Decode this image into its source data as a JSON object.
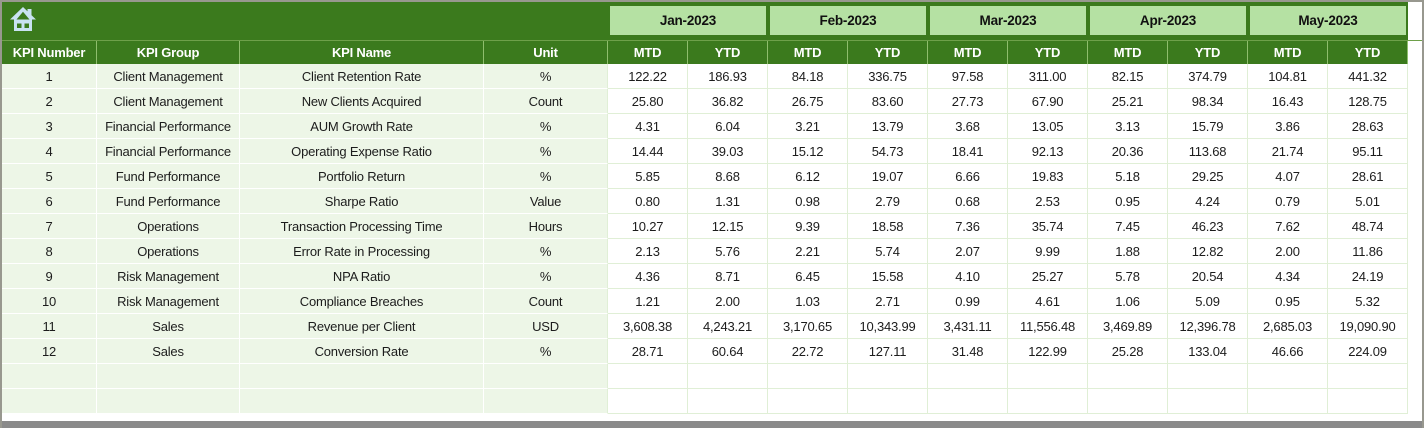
{
  "app": {
    "type": "spreadsheet-kpi-dashboard",
    "home_button": "home"
  },
  "colors": {
    "dark_green": "#3b7a1d",
    "light_green": "#b5e1a3",
    "left_cell_fill": "#edf6e7",
    "scrollbar_gray": "#8a8a8a",
    "home_icon_blue": "#c9e2f2"
  },
  "table": {
    "left_headers": [
      "KPI Number",
      "KPI Group",
      "KPI Name",
      "Unit"
    ],
    "months": [
      "Jan-2023",
      "Feb-2023",
      "Mar-2023",
      "Apr-2023",
      "May-2023"
    ],
    "sub_headers": [
      "MTD",
      "YTD"
    ],
    "rows": [
      {
        "kpi_number": "1",
        "kpi_group": "Client Management",
        "kpi_name": "Client Retention Rate",
        "unit": "%",
        "values": [
          "122.22",
          "186.93",
          "84.18",
          "336.75",
          "97.58",
          "311.00",
          "82.15",
          "374.79",
          "104.81",
          "441.32"
        ]
      },
      {
        "kpi_number": "2",
        "kpi_group": "Client Management",
        "kpi_name": "New Clients Acquired",
        "unit": "Count",
        "values": [
          "25.80",
          "36.82",
          "26.75",
          "83.60",
          "27.73",
          "67.90",
          "25.21",
          "98.34",
          "16.43",
          "128.75"
        ]
      },
      {
        "kpi_number": "3",
        "kpi_group": "Financial Performance",
        "kpi_name": "AUM Growth Rate",
        "unit": "%",
        "values": [
          "4.31",
          "6.04",
          "3.21",
          "13.79",
          "3.68",
          "13.05",
          "3.13",
          "15.79",
          "3.86",
          "28.63"
        ]
      },
      {
        "kpi_number": "4",
        "kpi_group": "Financial Performance",
        "kpi_name": "Operating Expense Ratio",
        "unit": "%",
        "values": [
          "14.44",
          "39.03",
          "15.12",
          "54.73",
          "18.41",
          "92.13",
          "20.36",
          "113.68",
          "21.74",
          "95.11"
        ]
      },
      {
        "kpi_number": "5",
        "kpi_group": "Fund Performance",
        "kpi_name": "Portfolio Return",
        "unit": "%",
        "values": [
          "5.85",
          "8.68",
          "6.12",
          "19.07",
          "6.66",
          "19.83",
          "5.18",
          "29.25",
          "4.07",
          "28.61"
        ]
      },
      {
        "kpi_number": "6",
        "kpi_group": "Fund Performance",
        "kpi_name": "Sharpe Ratio",
        "unit": "Value",
        "values": [
          "0.80",
          "1.31",
          "0.98",
          "2.79",
          "0.68",
          "2.53",
          "0.95",
          "4.24",
          "0.79",
          "5.01"
        ]
      },
      {
        "kpi_number": "7",
        "kpi_group": "Operations",
        "kpi_name": "Transaction Processing Time",
        "unit": "Hours",
        "values": [
          "10.27",
          "12.15",
          "9.39",
          "18.58",
          "7.36",
          "35.74",
          "7.45",
          "46.23",
          "7.62",
          "48.74"
        ]
      },
      {
        "kpi_number": "8",
        "kpi_group": "Operations",
        "kpi_name": "Error Rate in Processing",
        "unit": "%",
        "values": [
          "2.13",
          "5.76",
          "2.21",
          "5.74",
          "2.07",
          "9.99",
          "1.88",
          "12.82",
          "2.00",
          "11.86"
        ]
      },
      {
        "kpi_number": "9",
        "kpi_group": "Risk Management",
        "kpi_name": "NPA Ratio",
        "unit": "%",
        "values": [
          "4.36",
          "8.71",
          "6.45",
          "15.58",
          "4.10",
          "25.27",
          "5.78",
          "20.54",
          "4.34",
          "24.19"
        ]
      },
      {
        "kpi_number": "10",
        "kpi_group": "Risk Management",
        "kpi_name": "Compliance Breaches",
        "unit": "Count",
        "values": [
          "1.21",
          "2.00",
          "1.03",
          "2.71",
          "0.99",
          "4.61",
          "1.06",
          "5.09",
          "0.95",
          "5.32"
        ]
      },
      {
        "kpi_number": "11",
        "kpi_group": "Sales",
        "kpi_name": "Revenue per Client",
        "unit": "USD",
        "values": [
          "3,608.38",
          "4,243.21",
          "3,170.65",
          "10,343.99",
          "3,431.11",
          "11,556.48",
          "3,469.89",
          "12,396.78",
          "2,685.03",
          "19,090.90"
        ]
      },
      {
        "kpi_number": "12",
        "kpi_group": "Sales",
        "kpi_name": "Conversion Rate",
        "unit": "%",
        "values": [
          "28.71",
          "60.64",
          "22.72",
          "127.11",
          "31.48",
          "122.99",
          "25.28",
          "133.04",
          "46.66",
          "224.09"
        ]
      }
    ],
    "empty_row_count": 2
  }
}
